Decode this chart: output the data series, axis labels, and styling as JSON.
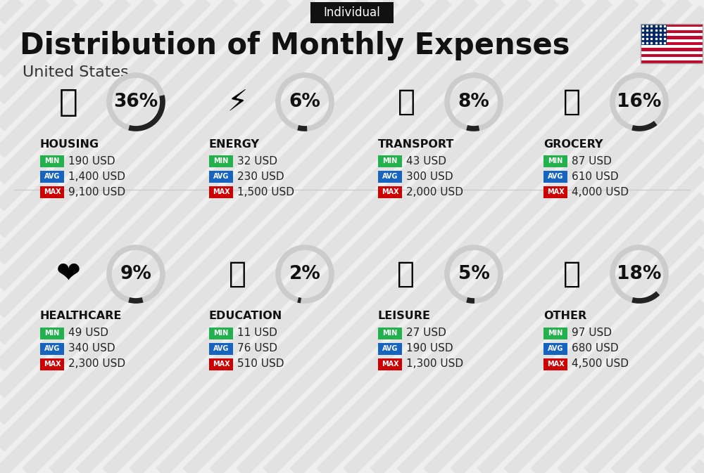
{
  "title": "Distribution of Monthly Expenses",
  "subtitle": "United States",
  "tag": "Individual",
  "bg_color": "#efefef",
  "categories": [
    {
      "name": "HOUSING",
      "pct": 36,
      "min_val": "190 USD",
      "avg_val": "1,400 USD",
      "max_val": "9,100 USD",
      "row": 0,
      "col": 0
    },
    {
      "name": "ENERGY",
      "pct": 6,
      "min_val": "32 USD",
      "avg_val": "230 USD",
      "max_val": "1,500 USD",
      "row": 0,
      "col": 1
    },
    {
      "name": "TRANSPORT",
      "pct": 8,
      "min_val": "43 USD",
      "avg_val": "300 USD",
      "max_val": "2,000 USD",
      "row": 0,
      "col": 2
    },
    {
      "name": "GROCERY",
      "pct": 16,
      "min_val": "87 USD",
      "avg_val": "610 USD",
      "max_val": "4,000 USD",
      "row": 0,
      "col": 3
    },
    {
      "name": "HEALTHCARE",
      "pct": 9,
      "min_val": "49 USD",
      "avg_val": "340 USD",
      "max_val": "2,300 USD",
      "row": 1,
      "col": 0
    },
    {
      "name": "EDUCATION",
      "pct": 2,
      "min_val": "11 USD",
      "avg_val": "76 USD",
      "max_val": "510 USD",
      "row": 1,
      "col": 1
    },
    {
      "name": "LEISURE",
      "pct": 5,
      "min_val": "27 USD",
      "avg_val": "190 USD",
      "max_val": "1,300 USD",
      "row": 1,
      "col": 2
    },
    {
      "name": "OTHER",
      "pct": 18,
      "min_val": "97 USD",
      "avg_val": "680 USD",
      "max_val": "4,500 USD",
      "row": 1,
      "col": 3
    }
  ],
  "min_color": "#22b14c",
  "avg_color": "#1565c0",
  "max_color": "#cc0000",
  "arc_color": "#222222",
  "arc_bg_color": "#cccccc",
  "stripe_color": "#d8d8d8",
  "title_fontsize": 30,
  "subtitle_fontsize": 16,
  "tag_fontsize": 12,
  "cat_fontsize": 11.5,
  "pct_fontsize": 19,
  "val_fontsize": 11,
  "badge_fontsize": 7
}
